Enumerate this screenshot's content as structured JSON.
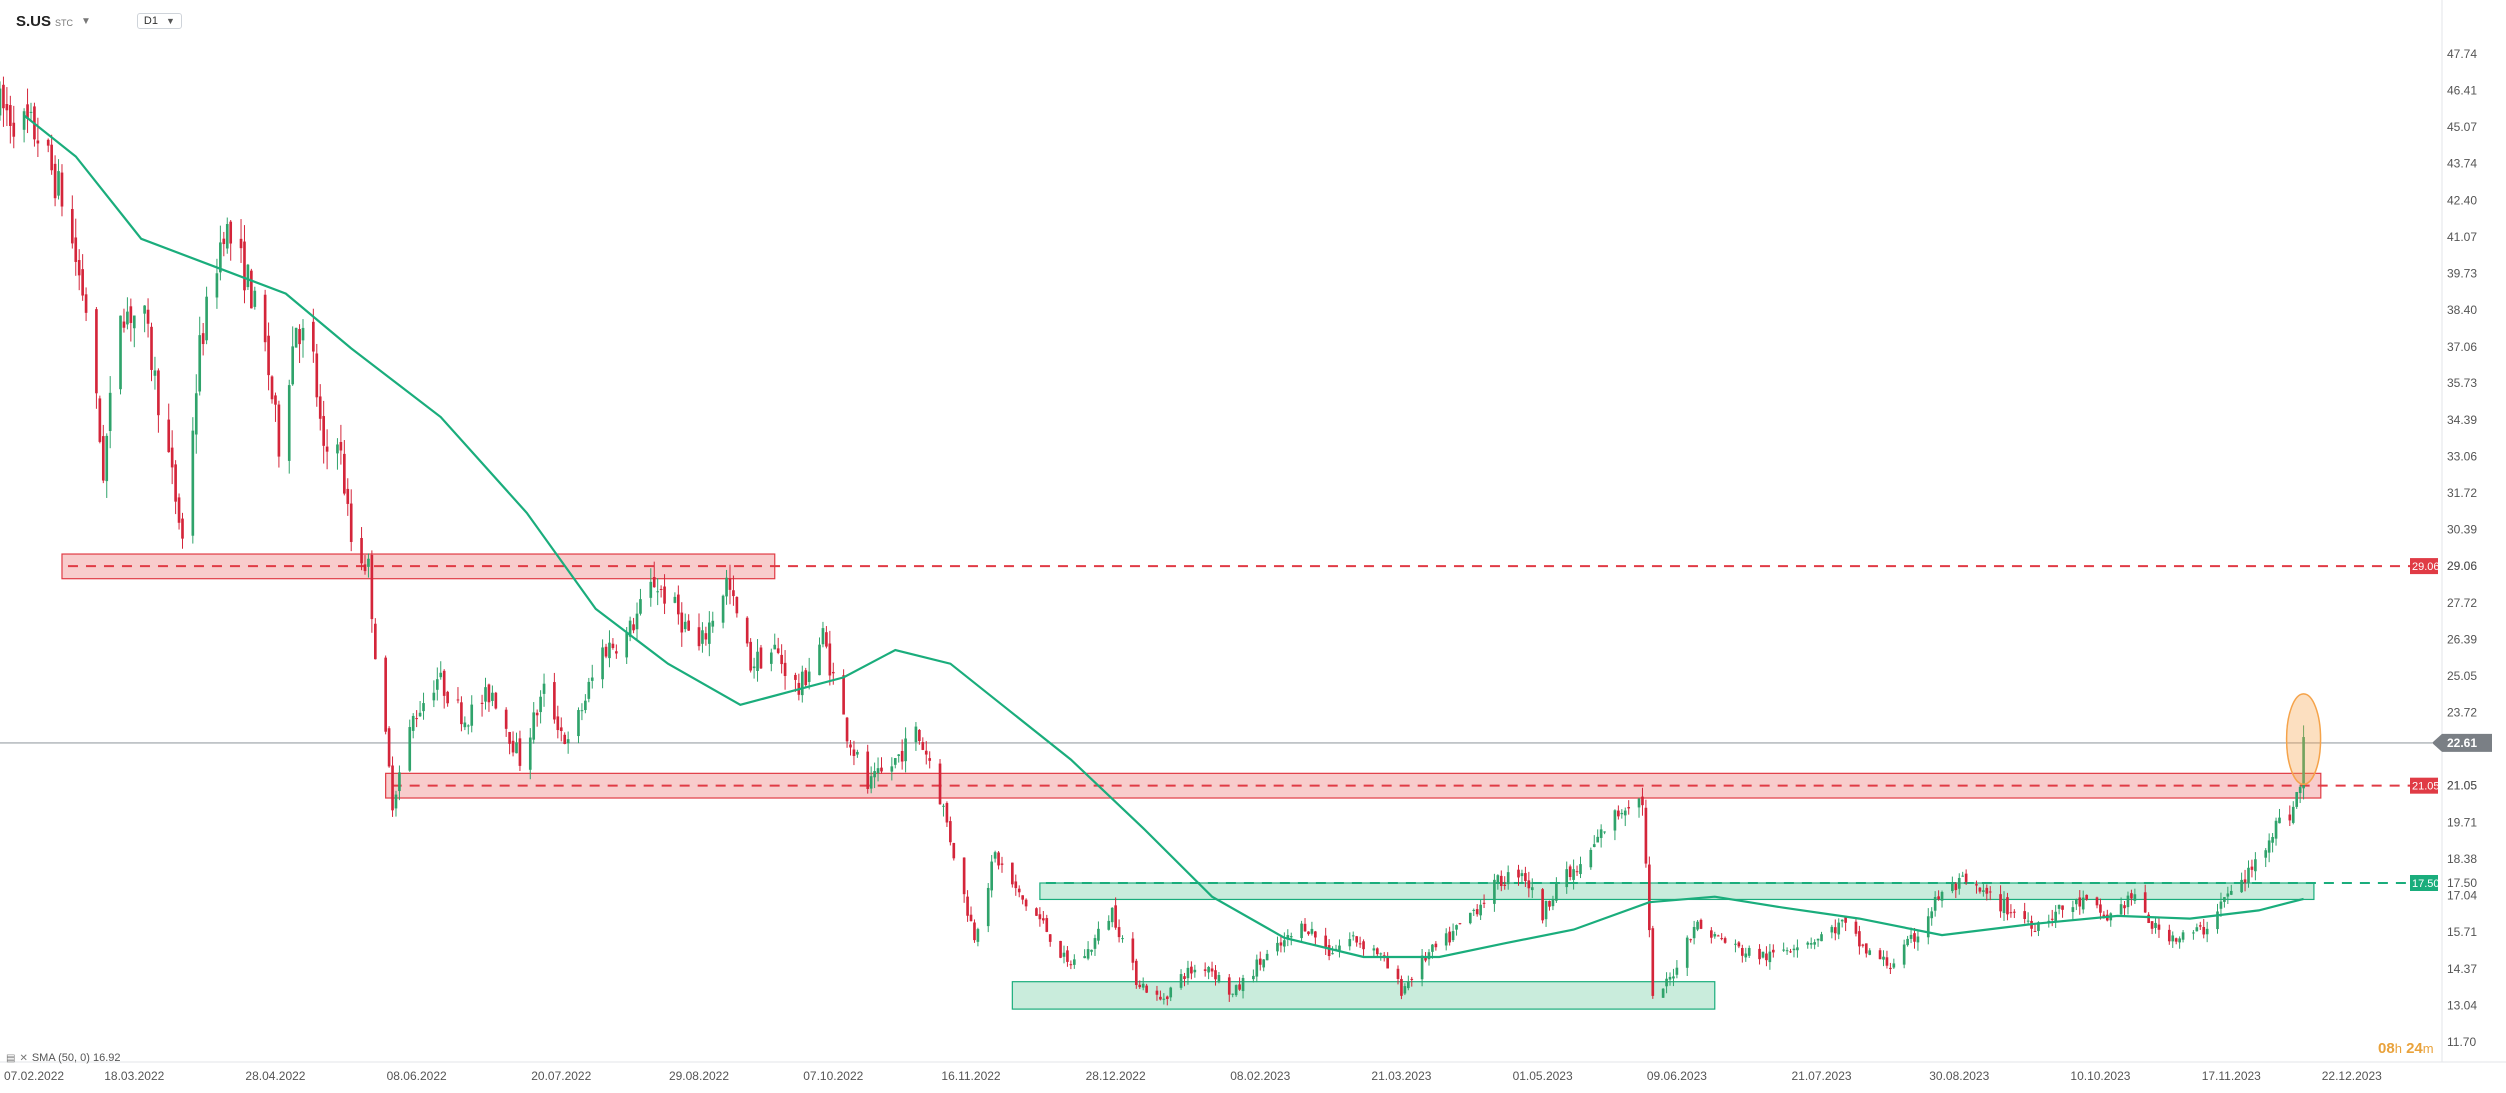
{
  "header": {
    "symbol": "S.US",
    "exchange": "STC",
    "timeframe": "D1",
    "symbol_menu_icon": "caret-down-icon",
    "timeframe_menu_icon": "caret-down-icon"
  },
  "indicator_legend": {
    "icons": [
      "indicator-icon",
      "close-icon"
    ],
    "label": "SMA (50, 0) 16.92"
  },
  "countdown": {
    "hours": "08",
    "hours_unit": "h",
    "minutes": "24",
    "minutes_unit": "m"
  },
  "colors": {
    "up": "#2fa36b",
    "down": "#d4253a",
    "sma": "#1aad7c",
    "resistance": "#e03b45",
    "resistance_zone_fill": "#f8cccc",
    "support": "#1aad7c",
    "support_zone_fill": "#c9ecdc",
    "price_line": "#9aa0a6",
    "price_tag": "#7a7f85",
    "highlight": "#f5a34a"
  },
  "chart_data": {
    "type": "candlestick",
    "title": "",
    "timeframe": "D1",
    "y_ticks": [
      47.74,
      46.41,
      45.07,
      43.74,
      42.4,
      41.07,
      39.73,
      38.4,
      37.06,
      35.73,
      34.39,
      33.06,
      31.72,
      30.39,
      29.06,
      27.72,
      26.39,
      25.05,
      23.72,
      22.61,
      21.05,
      19.71,
      18.38,
      17.04,
      15.71,
      14.37,
      13.04,
      11.7
    ],
    "y_tick_labels": [
      "47.74",
      "46.41",
      "45.07",
      "43.74",
      "42.40",
      "41.07",
      "39.73",
      "38.40",
      "37.06",
      "35.73",
      "34.39",
      "33.06",
      "31.72",
      "30.39",
      "29.06",
      "27.72",
      "26.39",
      "25.05",
      "23.72",
      "22.61",
      "21.05",
      "19.71",
      "18.38",
      "17.04",
      "15.71",
      "14.37",
      "13.04",
      "11.70"
    ],
    "ylim": [
      11.7,
      47.74
    ],
    "x_range": [
      "2022-02-07",
      "2024-01-05"
    ],
    "x_ticks": [
      "2022-02-07",
      "2022-03-18",
      "2022-04-28",
      "2022-06-08",
      "2022-07-20",
      "2022-08-29",
      "2022-10-07",
      "2022-11-16",
      "2022-12-28",
      "2023-02-08",
      "2023-03-21",
      "2023-05-01",
      "2023-06-09",
      "2023-07-21",
      "2023-08-30",
      "2023-10-10",
      "2023-11-17",
      "2023-12-22"
    ],
    "x_tick_labels": [
      "07.02.2022",
      "18.03.2022",
      "28.04.2022",
      "08.06.2022",
      "20.07.2022",
      "29.08.2022",
      "07.10.2022",
      "16.11.2022",
      "28.12.2022",
      "08.02.2023",
      "21.03.2023",
      "01.05.2023",
      "09.06.2023",
      "21.07.2023",
      "30.08.2023",
      "10.10.2023",
      "17.11.2023",
      "22.12.2023"
    ],
    "last_price": 22.61,
    "last_price_label": "22.61",
    "price_path": [
      [
        "2022-02-07",
        45.8
      ],
      [
        "2022-02-18",
        44.8
      ],
      [
        "2022-02-25",
        42.5
      ],
      [
        "2022-03-04",
        38.5
      ],
      [
        "2022-03-09",
        32.5
      ],
      [
        "2022-03-14",
        38.5
      ],
      [
        "2022-03-21",
        38.0
      ],
      [
        "2022-03-28",
        33.0
      ],
      [
        "2022-04-01",
        30.0
      ],
      [
        "2022-04-06",
        37.0
      ],
      [
        "2022-04-13",
        41.5
      ],
      [
        "2022-04-20",
        39.5
      ],
      [
        "2022-04-25",
        37.0
      ],
      [
        "2022-04-29",
        33.5
      ],
      [
        "2022-05-04",
        38.0
      ],
      [
        "2022-05-09",
        36.5
      ],
      [
        "2022-05-12",
        33.0
      ],
      [
        "2022-05-16",
        34.0
      ],
      [
        "2022-05-20",
        30.0
      ],
      [
        "2022-05-25",
        29.0
      ],
      [
        "2022-05-27",
        26.0
      ],
      [
        "2022-06-01",
        20.5
      ],
      [
        "2022-06-07",
        23.5
      ],
      [
        "2022-06-14",
        25.0
      ],
      [
        "2022-06-22",
        23.5
      ],
      [
        "2022-06-30",
        24.5
      ],
      [
        "2022-07-08",
        22.0
      ],
      [
        "2022-07-15",
        24.5
      ],
      [
        "2022-07-22",
        22.5
      ],
      [
        "2022-08-01",
        26.0
      ],
      [
        "2022-08-08",
        26.5
      ],
      [
        "2022-08-16",
        28.5
      ],
      [
        "2022-08-22",
        27.5
      ],
      [
        "2022-08-29",
        26.0
      ],
      [
        "2022-09-06",
        28.5
      ],
      [
        "2022-09-13",
        25.5
      ],
      [
        "2022-09-20",
        26.0
      ],
      [
        "2022-09-27",
        24.5
      ],
      [
        "2022-10-04",
        26.5
      ],
      [
        "2022-10-11",
        23.0
      ],
      [
        "2022-10-17",
        21.0
      ],
      [
        "2022-10-24",
        21.8
      ],
      [
        "2022-10-31",
        23.0
      ],
      [
        "2022-11-04",
        22.0
      ],
      [
        "2022-11-08",
        20.2
      ],
      [
        "2022-11-14",
        17.0
      ],
      [
        "2022-11-17",
        15.6
      ],
      [
        "2022-11-23",
        18.5
      ],
      [
        "2022-11-30",
        17.0
      ],
      [
        "2022-12-07",
        16.0
      ],
      [
        "2022-12-14",
        14.5
      ],
      [
        "2022-12-20",
        15.0
      ],
      [
        "2022-12-27",
        16.5
      ],
      [
        "2023-01-03",
        14.0
      ],
      [
        "2023-01-10",
        13.2
      ],
      [
        "2023-01-17",
        14.2
      ],
      [
        "2023-01-24",
        14.5
      ],
      [
        "2023-01-31",
        13.4
      ],
      [
        "2023-02-07",
        14.5
      ],
      [
        "2023-02-14",
        15.2
      ],
      [
        "2023-02-21",
        16.0
      ],
      [
        "2023-02-28",
        15.0
      ],
      [
        "2023-03-07",
        15.5
      ],
      [
        "2023-03-14",
        15.0
      ],
      [
        "2023-03-21",
        13.6
      ],
      [
        "2023-03-28",
        14.8
      ],
      [
        "2023-04-04",
        15.5
      ],
      [
        "2023-04-11",
        16.5
      ],
      [
        "2023-04-18",
        17.5
      ],
      [
        "2023-04-25",
        18.0
      ],
      [
        "2023-05-01",
        16.3
      ],
      [
        "2023-05-05",
        17.5
      ],
      [
        "2023-05-12",
        18.0
      ],
      [
        "2023-05-19",
        19.5
      ],
      [
        "2023-05-26",
        20.5
      ],
      [
        "2023-05-30",
        20.5
      ],
      [
        "2023-06-02",
        13.2
      ],
      [
        "2023-06-07",
        14.0
      ],
      [
        "2023-06-14",
        16.0
      ],
      [
        "2023-06-21",
        15.5
      ],
      [
        "2023-06-28",
        15.0
      ],
      [
        "2023-07-06",
        14.8
      ],
      [
        "2023-07-13",
        15.3
      ],
      [
        "2023-07-20",
        15.5
      ],
      [
        "2023-07-27",
        16.0
      ],
      [
        "2023-08-03",
        15.0
      ],
      [
        "2023-08-10",
        14.5
      ],
      [
        "2023-08-17",
        15.5
      ],
      [
        "2023-08-24",
        17.0
      ],
      [
        "2023-08-31",
        17.5
      ],
      [
        "2023-09-07",
        17.0
      ],
      [
        "2023-09-14",
        16.5
      ],
      [
        "2023-09-21",
        16.0
      ],
      [
        "2023-09-28",
        16.5
      ],
      [
        "2023-10-05",
        16.8
      ],
      [
        "2023-10-12",
        16.2
      ],
      [
        "2023-10-19",
        17.0
      ],
      [
        "2023-10-26",
        15.8
      ],
      [
        "2023-11-02",
        15.5
      ],
      [
        "2023-11-09",
        15.8
      ],
      [
        "2023-11-14",
        16.8
      ],
      [
        "2023-11-20",
        17.5
      ],
      [
        "2023-11-24",
        18.2
      ],
      [
        "2023-11-29",
        19.5
      ],
      [
        "2023-12-04",
        20.0
      ],
      [
        "2023-12-07",
        21.0
      ],
      [
        "2023-12-08",
        22.8
      ]
    ],
    "sma": {
      "name": "SMA (50, 0)",
      "last_value": 16.92,
      "points": [
        [
          "2022-02-14",
          45.5
        ],
        [
          "2022-03-01",
          44.0
        ],
        [
          "2022-03-20",
          41.0
        ],
        [
          "2022-04-10",
          40.0
        ],
        [
          "2022-05-01",
          39.0
        ],
        [
          "2022-05-20",
          37.0
        ],
        [
          "2022-06-15",
          34.5
        ],
        [
          "2022-07-10",
          31.0
        ],
        [
          "2022-07-30",
          27.5
        ],
        [
          "2022-08-20",
          25.5
        ],
        [
          "2022-09-10",
          24.0
        ],
        [
          "2022-09-25",
          24.5
        ],
        [
          "2022-10-10",
          25.0
        ],
        [
          "2022-10-25",
          26.0
        ],
        [
          "2022-11-10",
          25.5
        ],
        [
          "2022-11-25",
          24.0
        ],
        [
          "2022-12-15",
          22.0
        ],
        [
          "2023-01-05",
          19.5
        ],
        [
          "2023-01-25",
          17.0
        ],
        [
          "2023-02-15",
          15.5
        ],
        [
          "2023-03-10",
          14.8
        ],
        [
          "2023-04-01",
          14.8
        ],
        [
          "2023-04-20",
          15.3
        ],
        [
          "2023-05-10",
          15.8
        ],
        [
          "2023-06-01",
          16.8
        ],
        [
          "2023-06-20",
          17.0
        ],
        [
          "2023-07-10",
          16.6
        ],
        [
          "2023-08-01",
          16.2
        ],
        [
          "2023-08-25",
          15.6
        ],
        [
          "2023-09-20",
          16.0
        ],
        [
          "2023-10-15",
          16.3
        ],
        [
          "2023-11-05",
          16.2
        ],
        [
          "2023-11-25",
          16.5
        ],
        [
          "2023-12-08",
          16.92
        ]
      ]
    },
    "levels": [
      {
        "name": "resistance",
        "value": 29.06,
        "tag": "29.06",
        "color": "#e03b45",
        "style": "dashed",
        "zone": {
          "from": "2022-02-25",
          "to": "2022-09-20",
          "low": 28.6,
          "high": 29.5
        }
      },
      {
        "name": "resistance",
        "value": 21.05,
        "tag": "21.05",
        "color": "#e03b45",
        "style": "dashed",
        "zone": {
          "from": "2022-05-30",
          "to": "2023-12-13",
          "low": 20.6,
          "high": 21.5
        }
      },
      {
        "name": "support",
        "value": 17.5,
        "tag": "17.50",
        "color": "#1aad7c",
        "style": "dashed",
        "zone": {
          "from": "2022-12-06",
          "to": "2023-12-11",
          "low": 16.9,
          "high": 17.5
        }
      },
      {
        "name": "support",
        "value": 13.2,
        "color": "#1aad7c",
        "zone": {
          "from": "2022-11-28",
          "to": "2023-06-20",
          "low": 12.9,
          "high": 13.9
        }
      }
    ],
    "highlight": {
      "shape": "ellipse",
      "date": "2023-12-08",
      "low": 21.1,
      "high": 24.4
    },
    "grid": false,
    "legend": "bottom-left"
  }
}
